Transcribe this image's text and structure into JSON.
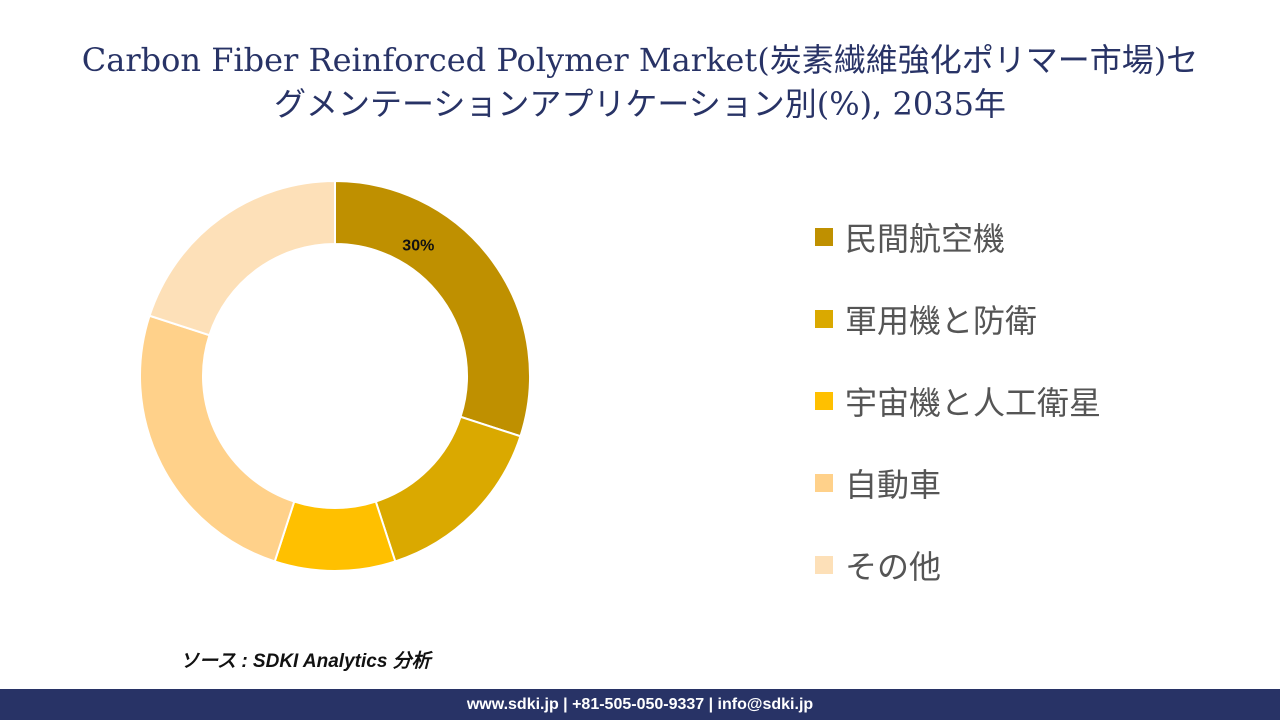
{
  "title": {
    "line1": "Carbon Fiber Reinforced Polymer Market(炭素繊維強化ポリマー市場)セ",
    "line2": "グメンテーションアプリケーション別(%), 2035年"
  },
  "chart_data": {
    "type": "pie",
    "variant": "donut",
    "categories": [
      "民間航空機",
      "軍用機と防衛",
      "宇宙機と人工衛星",
      "自動車",
      "その他"
    ],
    "values": [
      30,
      15,
      10,
      25,
      20
    ],
    "colors": [
      "#bf9000",
      "#daa900",
      "#ffc000",
      "#ffd18a",
      "#fde0b8"
    ],
    "data_labels": [
      "30%",
      "",
      "",
      "",
      ""
    ],
    "legend_position": "right"
  },
  "source": "ソース : SDKI Analytics 分析",
  "footer": "www.sdki.jp | +81-505-050-9337 | info@sdki.jp"
}
